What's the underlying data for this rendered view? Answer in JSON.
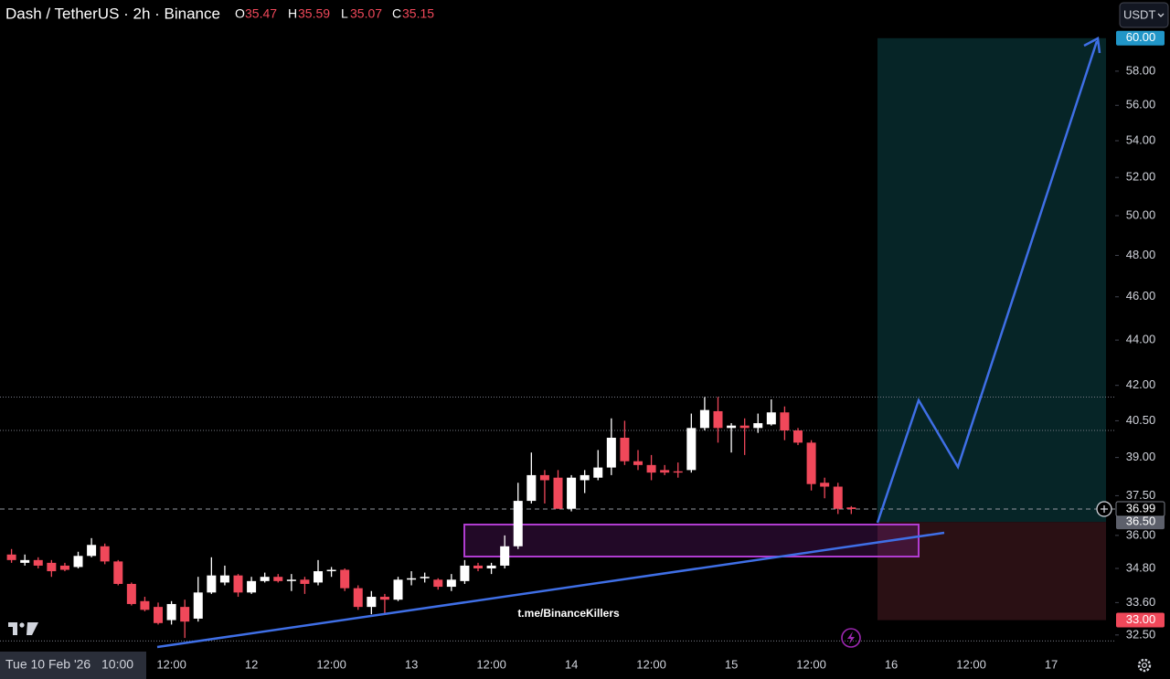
{
  "chart_data": {
    "type": "candlestick",
    "header": {
      "symbol": "Dash / TetherUS · 2h · Binance",
      "o_label": "O",
      "o": 35.47,
      "h_label": "H",
      "h": 35.59,
      "l_label": "L",
      "l": 35.07,
      "c_label": "C",
      "c": 35.15
    },
    "currency_button": "USDT",
    "watermark": "t.me/BinanceKillers",
    "cursor_date": "Tue 10 Feb '26",
    "cursor_time": "10:00",
    "log_scale": true,
    "grid": false,
    "up_color": "#ffffff",
    "down_color": "#f0485a",
    "categories": [
      null,
      null,
      null,
      null,
      null,
      null,
      null,
      null,
      null,
      null,
      null,
      null,
      "12:00",
      null,
      null,
      null,
      null,
      null,
      "12",
      null,
      null,
      null,
      null,
      null,
      "12:00",
      null,
      null,
      null,
      null,
      null,
      "13",
      null,
      null,
      null,
      null,
      null,
      "12:00",
      null,
      null,
      null,
      null,
      null,
      "14",
      null,
      null,
      null,
      null,
      null,
      "12:00",
      null,
      null,
      null,
      null,
      null,
      "15",
      null,
      null,
      null,
      null,
      null,
      "12:00",
      null,
      null,
      null,
      null,
      null,
      "16",
      null,
      null,
      null,
      null,
      null,
      "12:00",
      null,
      null,
      null,
      null,
      null,
      "17",
      null,
      null,
      null,
      null
    ],
    "open": [
      35.3,
      35.0,
      35.1,
      35.0,
      34.9,
      34.85,
      35.25,
      35.6,
      35.05,
      34.25,
      33.65,
      33.45,
      33.0,
      33.45,
      33.05,
      33.95,
      34.3,
      34.55,
      33.95,
      34.35,
      34.5,
      34.35,
      34.4,
      34.3,
      34.7,
      34.75,
      34.1,
      33.45,
      33.8,
      33.7,
      34.4,
      34.45,
      34.4,
      34.15,
      34.35,
      34.9,
      34.8,
      34.9,
      35.6,
      37.3,
      38.3,
      38.2,
      37.0,
      38.1,
      38.2,
      38.6,
      39.8,
      38.85,
      38.7,
      38.5,
      38.45,
      38.5,
      40.2,
      40.9,
      40.2,
      40.3,
      40.2,
      40.35,
      40.85,
      40.1,
      39.6,
      38.0,
      37.85,
      37.05,
      null,
      null,
      null,
      null,
      null,
      null,
      null,
      null,
      null,
      null,
      null,
      null,
      null,
      null,
      null,
      null,
      null,
      null,
      null
    ],
    "high": [
      35.5,
      35.3,
      35.2,
      35.1,
      35.0,
      35.4,
      35.9,
      35.7,
      35.1,
      34.3,
      33.8,
      33.6,
      33.65,
      33.7,
      34.5,
      35.2,
      34.9,
      34.6,
      34.5,
      34.65,
      34.6,
      34.6,
      34.5,
      35.1,
      34.85,
      34.8,
      34.2,
      34.0,
      33.9,
      34.5,
      34.7,
      34.65,
      34.45,
      34.6,
      35.1,
      35.0,
      35.0,
      36.0,
      38.0,
      39.2,
      38.5,
      38.5,
      38.3,
      38.5,
      39.3,
      40.6,
      40.5,
      39.3,
      39.1,
      38.7,
      38.8,
      40.8,
      41.5,
      41.5,
      40.4,
      40.6,
      40.8,
      41.4,
      41.1,
      40.2,
      39.7,
      38.2,
      38.0,
      37.1,
      null,
      null,
      null,
      null,
      null,
      null,
      null,
      null,
      null,
      null,
      null,
      null,
      null,
      null,
      null,
      null,
      null,
      null,
      null
    ],
    "low": [
      35.0,
      34.9,
      34.8,
      34.5,
      34.7,
      34.8,
      35.2,
      34.95,
      34.2,
      33.5,
      33.3,
      32.85,
      32.85,
      32.4,
      32.95,
      33.9,
      34.2,
      33.8,
      33.9,
      34.3,
      34.3,
      34.0,
      33.9,
      34.2,
      34.5,
      34.0,
      33.35,
      33.2,
      33.2,
      33.65,
      34.2,
      34.3,
      34.05,
      34.0,
      34.25,
      34.7,
      34.6,
      34.8,
      35.5,
      37.2,
      37.2,
      37.0,
      36.9,
      37.6,
      38.1,
      38.3,
      38.7,
      38.5,
      38.1,
      38.3,
      38.2,
      38.4,
      40.1,
      39.6,
      39.2,
      39.1,
      40.0,
      40.3,
      39.7,
      39.5,
      37.7,
      37.4,
      36.8,
      36.8,
      null,
      null,
      null,
      null,
      null,
      null,
      null,
      null,
      null,
      null,
      null,
      null,
      null,
      null,
      null,
      null,
      null,
      null,
      null
    ],
    "close": [
      35.1,
      35.1,
      34.9,
      34.7,
      34.75,
      35.25,
      35.65,
      35.05,
      34.25,
      33.55,
      33.35,
      32.9,
      33.55,
      32.95,
      33.95,
      34.55,
      34.55,
      33.95,
      34.35,
      34.5,
      34.35,
      34.4,
      34.25,
      34.7,
      34.75,
      34.1,
      33.45,
      33.8,
      33.7,
      34.4,
      34.45,
      34.5,
      34.15,
      34.4,
      34.9,
      34.8,
      34.9,
      35.6,
      37.3,
      38.3,
      38.1,
      37.0,
      38.2,
      38.3,
      38.6,
      39.8,
      38.85,
      38.7,
      38.4,
      38.4,
      38.4,
      40.2,
      40.95,
      40.2,
      40.3,
      40.2,
      40.4,
      40.85,
      40.1,
      39.6,
      37.95,
      37.85,
      37.0,
      36.99,
      null,
      null,
      null,
      null,
      null,
      null,
      null,
      null,
      null,
      null,
      null,
      null,
      null,
      null,
      null,
      null,
      null,
      null,
      null
    ],
    "ylim": [
      31.98,
      62.4
    ],
    "yticks": [
      {
        "value": 32.5,
        "label": "32.50"
      },
      {
        "value": 33.6,
        "label": "33.60"
      },
      {
        "value": 34.8,
        "label": "34.80"
      },
      {
        "value": 36,
        "label": "36.00"
      },
      {
        "value": 37.5,
        "label": "37.50"
      },
      {
        "value": 39,
        "label": "39.00"
      },
      {
        "value": 40.5,
        "label": "40.50"
      },
      {
        "value": 42,
        "label": "42.00"
      },
      {
        "value": 44,
        "label": "44.00"
      },
      {
        "value": 46,
        "label": "46.00"
      },
      {
        "value": 48,
        "label": "48.00"
      },
      {
        "value": 50,
        "label": "50.00"
      },
      {
        "value": 52,
        "label": "52.00"
      },
      {
        "value": 54,
        "label": "54.00"
      },
      {
        "value": 56,
        "label": "56.00"
      },
      {
        "value": 58,
        "label": "58.00"
      }
    ],
    "levels": [
      41.5,
      40.1,
      32.3
    ],
    "last_price": {
      "value": 36.99,
      "label": "36.99"
    },
    "position": {
      "target": {
        "value": 60,
        "label": "60.00",
        "color": "#2196c8"
      },
      "entry": {
        "value": 36.5,
        "label": "36.50",
        "color": "#5d606b"
      },
      "stop": {
        "value": 33,
        "label": "33.00",
        "color": "#f0485a"
      },
      "profit_color": "#062527",
      "loss_color": "#2a1014"
    }
  }
}
